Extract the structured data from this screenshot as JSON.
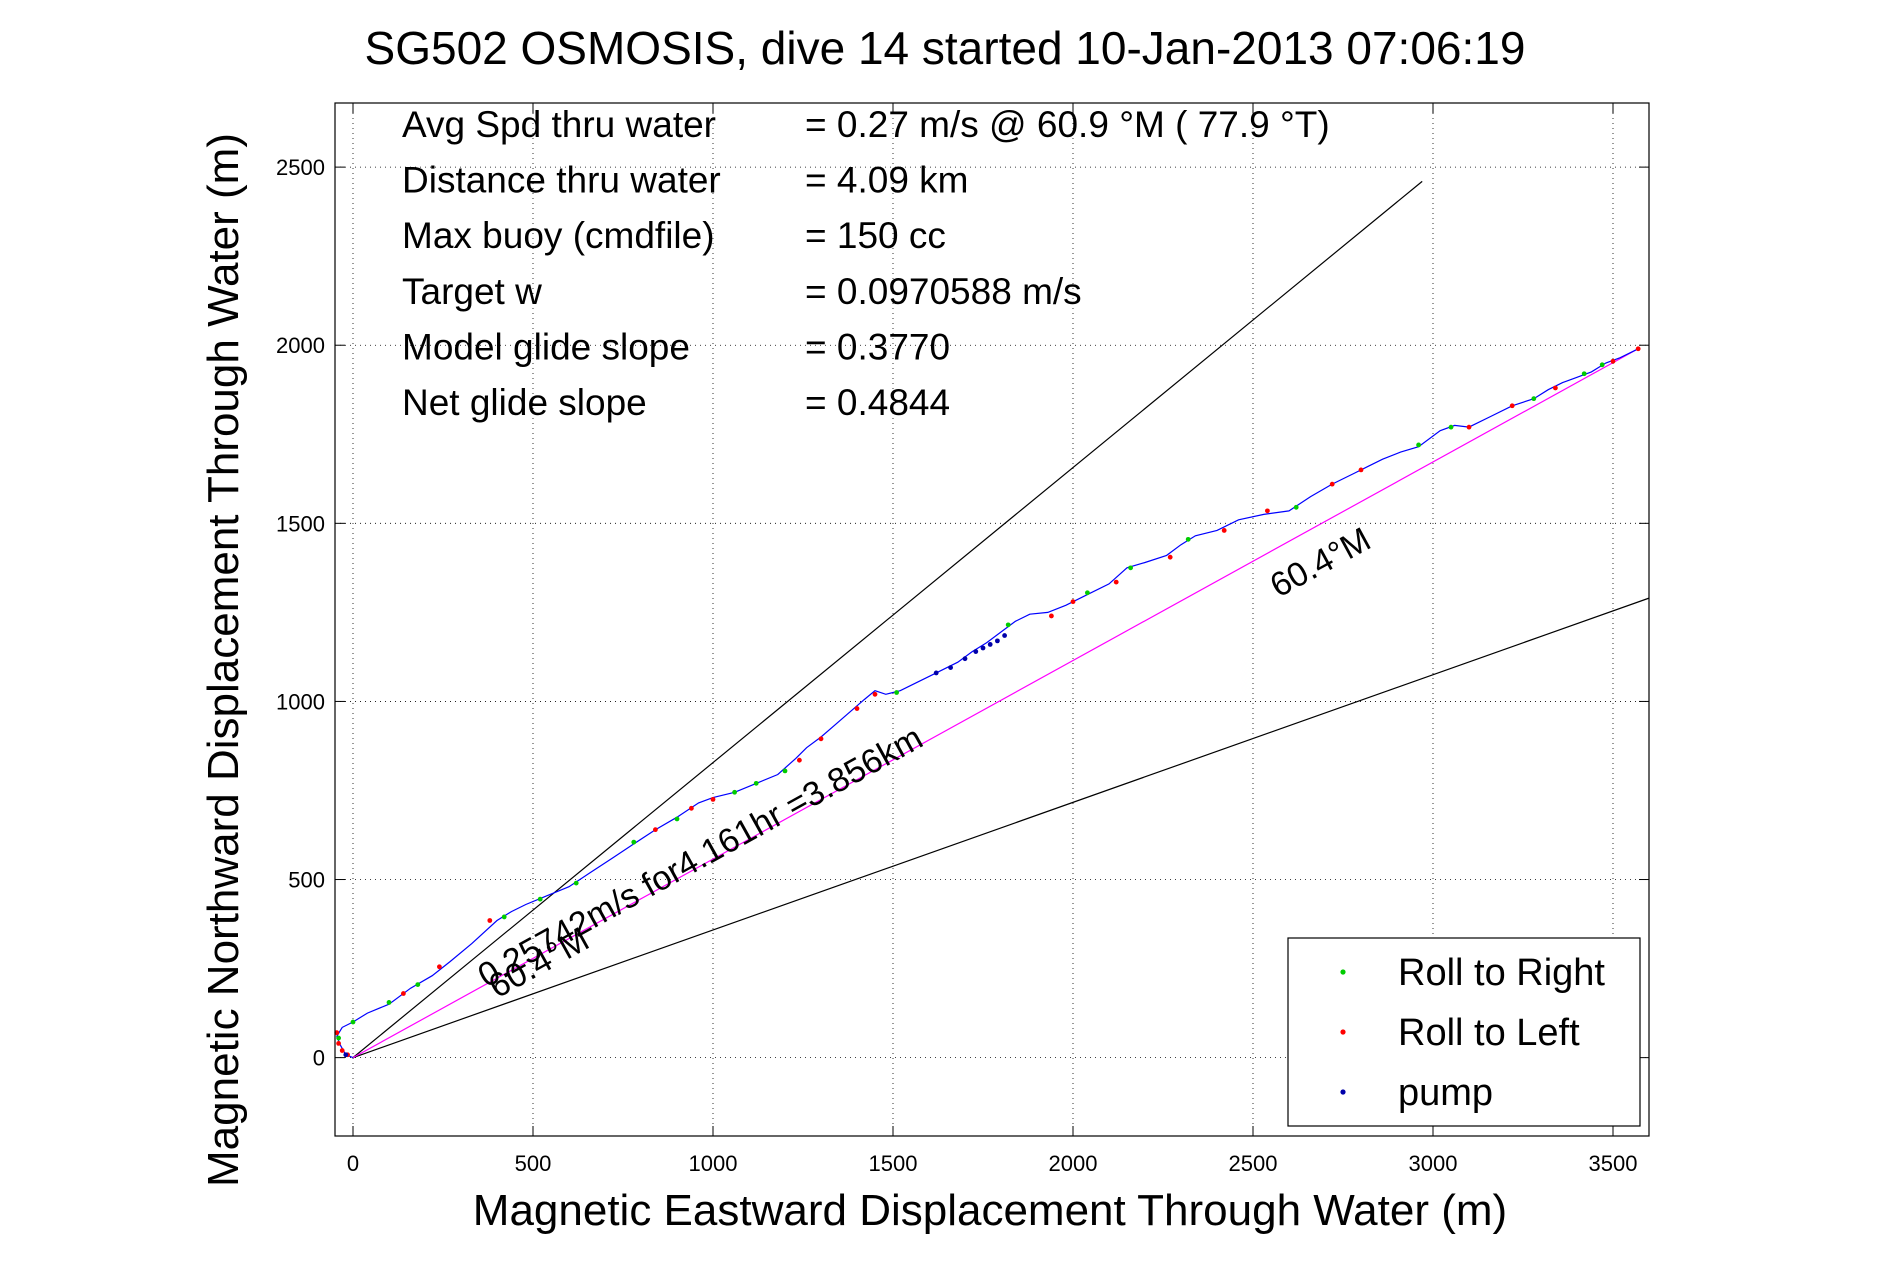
{
  "chart_data": {
    "type": "line",
    "title": "SG502 OSMOSIS, dive 14 started 10-Jan-2013 07:06:19",
    "xlabel": "Magnetic Eastward Displacement Through Water (m)",
    "ylabel": "Magnetic Northward Displacement Through Water (m)",
    "xlim": [
      -50,
      3600
    ],
    "ylim": [
      -220,
      2680
    ],
    "xticks": [
      0,
      500,
      1000,
      1500,
      2000,
      2500,
      3000,
      3500
    ],
    "yticks": [
      0,
      500,
      1000,
      1500,
      2000,
      2500
    ],
    "grid": "dotted",
    "stats": [
      {
        "label": "Avg Spd thru water",
        "value": "=  0.27 m/s @  60.9 °M ( 77.9 °T)"
      },
      {
        "label": "Distance thru water",
        "value": "=  4.09 km"
      },
      {
        "label": "Max buoy (cmdfile)",
        "value": "= 150 cc"
      },
      {
        "label": "Target w",
        "value": "= 0.0970588 m/s"
      },
      {
        "label": "Model glide slope",
        "value": "= 0.3770"
      },
      {
        "label": "Net glide slope",
        "value": "= 0.4844"
      }
    ],
    "reference_lines": [
      {
        "from": [
          0,
          0
        ],
        "to": [
          2970,
          2460
        ],
        "color": "#000000"
      },
      {
        "from": [
          0,
          0
        ],
        "to": [
          3600,
          1290
        ],
        "color": "#000000"
      },
      {
        "from": [
          0,
          0
        ],
        "to": [
          3570,
          1990
        ],
        "color": "#ff00ff"
      }
    ],
    "track": {
      "color": "#0000ff",
      "points": [
        [
          0,
          0
        ],
        [
          -20,
          8
        ],
        [
          -35,
          35
        ],
        [
          -45,
          60
        ],
        [
          -30,
          85
        ],
        [
          0,
          100
        ],
        [
          40,
          125
        ],
        [
          100,
          150
        ],
        [
          160,
          195
        ],
        [
          220,
          230
        ],
        [
          270,
          270
        ],
        [
          330,
          320
        ],
        [
          400,
          385
        ],
        [
          440,
          410
        ],
        [
          480,
          430
        ],
        [
          540,
          455
        ],
        [
          600,
          480
        ],
        [
          660,
          520
        ],
        [
          720,
          560
        ],
        [
          780,
          600
        ],
        [
          840,
          640
        ],
        [
          900,
          675
        ],
        [
          960,
          715
        ],
        [
          1000,
          730
        ],
        [
          1060,
          745
        ],
        [
          1120,
          770
        ],
        [
          1180,
          795
        ],
        [
          1230,
          840
        ],
        [
          1260,
          870
        ],
        [
          1300,
          900
        ],
        [
          1340,
          935
        ],
        [
          1380,
          970
        ],
        [
          1420,
          1005
        ],
        [
          1450,
          1030
        ],
        [
          1480,
          1020
        ],
        [
          1520,
          1030
        ],
        [
          1560,
          1050
        ],
        [
          1620,
          1080
        ],
        [
          1680,
          1110
        ],
        [
          1720,
          1140
        ],
        [
          1760,
          1165
        ],
        [
          1800,
          1195
        ],
        [
          1840,
          1225
        ],
        [
          1880,
          1245
        ],
        [
          1930,
          1250
        ],
        [
          1980,
          1270
        ],
        [
          2040,
          1300
        ],
        [
          2100,
          1330
        ],
        [
          2150,
          1375
        ],
        [
          2200,
          1390
        ],
        [
          2260,
          1410
        ],
        [
          2300,
          1440
        ],
        [
          2340,
          1465
        ],
        [
          2400,
          1480
        ],
        [
          2460,
          1510
        ],
        [
          2530,
          1525
        ],
        [
          2600,
          1535
        ],
        [
          2660,
          1575
        ],
        [
          2720,
          1610
        ],
        [
          2780,
          1640
        ],
        [
          2820,
          1660
        ],
        [
          2860,
          1680
        ],
        [
          2910,
          1700
        ],
        [
          2960,
          1715
        ],
        [
          3020,
          1760
        ],
        [
          3060,
          1775
        ],
        [
          3100,
          1770
        ],
        [
          3160,
          1800
        ],
        [
          3220,
          1830
        ],
        [
          3280,
          1850
        ],
        [
          3320,
          1875
        ],
        [
          3360,
          1895
        ],
        [
          3400,
          1910
        ],
        [
          3440,
          1925
        ],
        [
          3480,
          1950
        ],
        [
          3520,
          1965
        ],
        [
          3570,
          1990
        ]
      ]
    },
    "markers": {
      "right": [
        [
          -40,
          55
        ],
        [
          0,
          100
        ],
        [
          100,
          155
        ],
        [
          180,
          205
        ],
        [
          420,
          395
        ],
        [
          520,
          445
        ],
        [
          620,
          490
        ],
        [
          780,
          605
        ],
        [
          900,
          670
        ],
        [
          1060,
          745
        ],
        [
          1120,
          770
        ],
        [
          1200,
          805
        ],
        [
          1510,
          1025
        ],
        [
          1820,
          1215
        ],
        [
          2040,
          1305
        ],
        [
          2160,
          1375
        ],
        [
          2320,
          1455
        ],
        [
          2620,
          1545
        ],
        [
          2960,
          1720
        ],
        [
          3050,
          1770
        ],
        [
          3280,
          1850
        ],
        [
          3420,
          1920
        ],
        [
          3470,
          1945
        ]
      ],
      "left": [
        [
          -45,
          70
        ],
        [
          -40,
          40
        ],
        [
          -30,
          20
        ],
        [
          -15,
          8
        ],
        [
          140,
          180
        ],
        [
          240,
          255
        ],
        [
          380,
          385
        ],
        [
          840,
          640
        ],
        [
          940,
          700
        ],
        [
          1000,
          725
        ],
        [
          1240,
          835
        ],
        [
          1300,
          895
        ],
        [
          1400,
          980
        ],
        [
          1450,
          1020
        ],
        [
          1940,
          1240
        ],
        [
          2000,
          1280
        ],
        [
          2120,
          1335
        ],
        [
          2270,
          1405
        ],
        [
          2420,
          1480
        ],
        [
          2540,
          1535
        ],
        [
          2720,
          1610
        ],
        [
          2800,
          1650
        ],
        [
          3100,
          1770
        ],
        [
          3220,
          1830
        ],
        [
          3340,
          1880
        ],
        [
          3500,
          1955
        ],
        [
          3570,
          1990
        ]
      ],
      "pump": [
        [
          -20,
          8
        ],
        [
          1620,
          1080
        ],
        [
          1660,
          1095
        ],
        [
          1700,
          1120
        ],
        [
          1730,
          1140
        ],
        [
          1750,
          1150
        ],
        [
          1770,
          1160
        ],
        [
          1790,
          1170
        ],
        [
          1810,
          1185
        ]
      ]
    },
    "annotations": [
      {
        "text": "60.4°M",
        "at": [
          2570,
          1290
        ],
        "angle": -28.5
      },
      {
        "text": "0.25742m/s for4.161hr =3.856km",
        "at": [
          370,
          195
        ],
        "angle": -29
      },
      {
        "text": "60.4°M",
        "at": [
          400,
          165
        ],
        "angle": -29
      }
    ],
    "legend": {
      "position": "bottom-right",
      "entries": [
        {
          "name": "Roll to Right",
          "color": "#00cc00"
        },
        {
          "name": "Roll to Left",
          "color": "#ff0000"
        },
        {
          "name": "pump",
          "color": "#0000aa"
        }
      ]
    }
  }
}
